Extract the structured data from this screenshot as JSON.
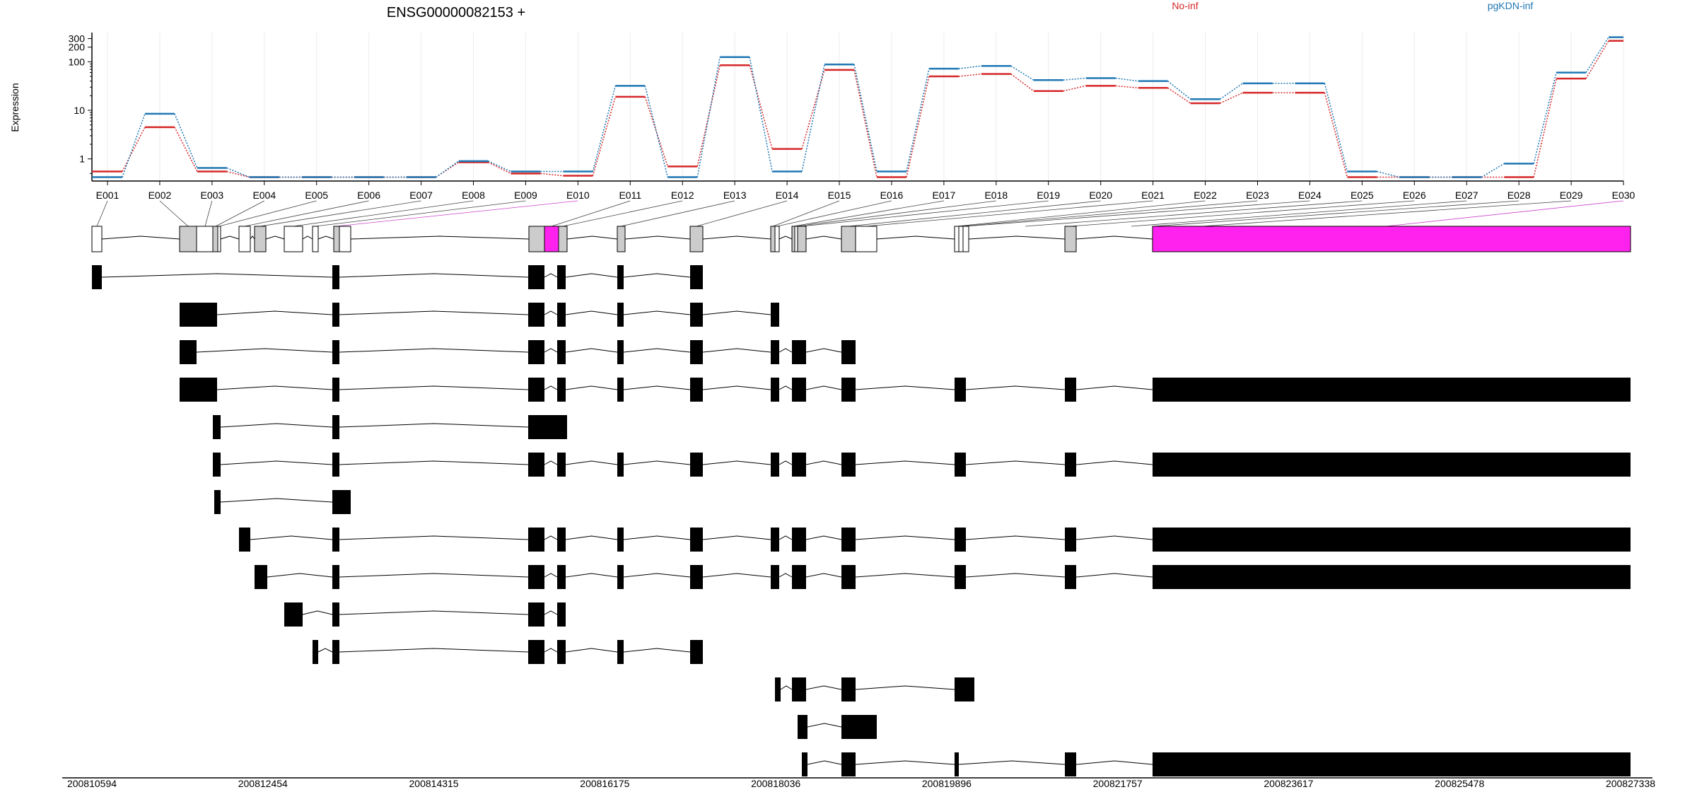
{
  "chart_data": {
    "type": "line",
    "title": "ENSG00000082153 +",
    "ylabel": "Expression",
    "xlabel": "",
    "yscale": "log",
    "ylim": [
      0.35,
      400
    ],
    "yticks": [
      1,
      10,
      100,
      200,
      300
    ],
    "grid": true,
    "legend_placement": "top-right",
    "categories": [
      "E001",
      "E002",
      "E003",
      "E004",
      "E005",
      "E006",
      "E007",
      "E008",
      "E009",
      "E010",
      "E011",
      "E012",
      "E013",
      "E014",
      "E015",
      "E016",
      "E017",
      "E018",
      "E019",
      "E020",
      "E021",
      "E022",
      "E023",
      "E024",
      "E025",
      "E026",
      "E027",
      "E028",
      "E029",
      "E030"
    ],
    "series": [
      {
        "name": "No-inf",
        "color": "#d62728",
        "values": [
          0.55,
          4.5,
          0.55,
          0.42,
          0.42,
          0.42,
          0.42,
          0.85,
          0.5,
          0.45,
          19,
          0.7,
          85,
          1.6,
          68,
          0.42,
          50,
          56,
          25,
          32,
          29,
          14,
          23,
          23,
          0.42,
          0.42,
          0.42,
          0.42,
          45,
          270
        ]
      },
      {
        "name": "pgKDN-inf",
        "color": "#1f77b4",
        "values": [
          0.42,
          8.5,
          0.65,
          0.42,
          0.42,
          0.42,
          0.42,
          0.9,
          0.55,
          0.55,
          32,
          0.42,
          125,
          0.55,
          88,
          0.55,
          72,
          82,
          42,
          46,
          40,
          17,
          36,
          36,
          0.55,
          0.42,
          0.42,
          0.8,
          60,
          320
        ]
      }
    ],
    "genomic_axis": {
      "ticks": [
        "200810594",
        "200812454",
        "200814315",
        "200816175",
        "200818036",
        "200819896",
        "200821757",
        "200823617",
        "200825478",
        "200827338"
      ],
      "range": [
        200810594,
        200827338
      ]
    },
    "highlighted_exon": "E010"
  }
}
